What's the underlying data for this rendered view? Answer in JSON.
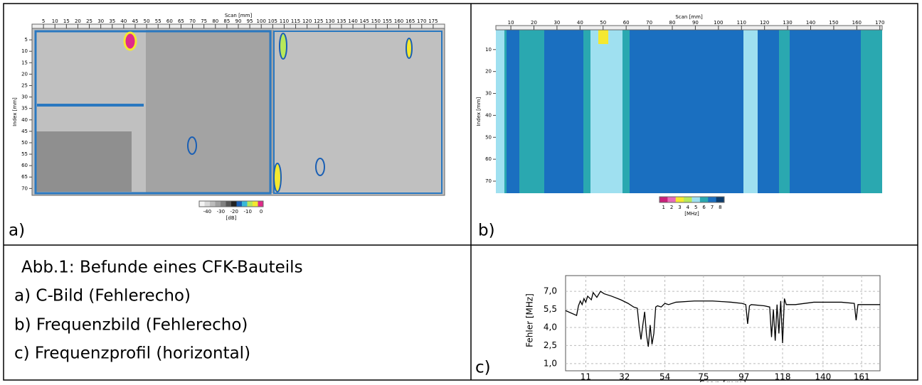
{
  "caption": [
    "Abb.1: Befunde eines CFK-Bauteils",
    "a) C-Bild (Fehlerecho)",
    "b) Frequenzbild (Fehlerecho)",
    "c) Frequenzprofil (horizontal)"
  ],
  "panel_a": {
    "label": "a)",
    "x_title": "Scan [mm]",
    "y_title": "Index [mm]",
    "xlim": [
      0,
      180
    ],
    "ylim": [
      0,
      73
    ],
    "xticks": [
      5,
      10,
      15,
      20,
      25,
      30,
      35,
      40,
      45,
      50,
      55,
      60,
      65,
      70,
      75,
      80,
      85,
      90,
      95,
      100,
      105,
      110,
      115,
      120,
      125,
      130,
      135,
      140,
      145,
      150,
      155,
      160,
      165,
      170,
      175
    ],
    "yticks": [
      5,
      10,
      15,
      20,
      25,
      30,
      35,
      40,
      45,
      50,
      55,
      60,
      65,
      70
    ],
    "colorbar": {
      "title": "[dB]",
      "clim": [
        -46,
        1.5
      ],
      "ticks": [
        -40,
        -30,
        -20,
        -10,
        0
      ],
      "colors": [
        "#f4f4f4",
        "#d8d8d8",
        "#bcbcbc",
        "#a0a0a0",
        "#808080",
        "#555",
        "#222",
        "#1a5fb4",
        "#39b8d8",
        "#b8e85a",
        "#f4e830",
        "#e02a8a"
      ]
    }
  },
  "panel_b": {
    "label": "b)",
    "x_title": "Scan [mm]",
    "y_title": "Index [mm]",
    "xlim": [
      3.5,
      171
    ],
    "ylim": [
      1,
      75.5
    ],
    "xticks": [
      10,
      20,
      30,
      40,
      50,
      60,
      70,
      80,
      90,
      100,
      110,
      120,
      130,
      140,
      150,
      160,
      170
    ],
    "yticks": [
      10,
      20,
      30,
      40,
      50,
      60,
      70
    ],
    "colorbar": {
      "title": "[MHz]",
      "clim": [
        0.5,
        8.5
      ],
      "ticks": [
        1,
        2,
        3,
        4,
        5,
        6,
        7,
        8
      ],
      "colors": [
        "#c8207a",
        "#e86ab8",
        "#f4e830",
        "#b8e85a",
        "#9fe0f0",
        "#2aa8b0",
        "#1a6fc0",
        "#0c3c6c"
      ]
    }
  },
  "chart_data": {
    "type": "line",
    "label": "c)",
    "x_title": "Scan [mm]",
    "y_title": "Fehler [MHz]",
    "xlim": [
      0,
      171
    ],
    "ylim": [
      0.4,
      7.6
    ],
    "xticks": [
      11,
      32,
      54,
      75,
      97,
      118,
      140,
      161
    ],
    "yticks": [
      {
        "value": 7,
        "label": "7,0"
      },
      {
        "value": 5.5,
        "label": "5,5"
      },
      {
        "value": 4,
        "label": "4,0"
      },
      {
        "value": 2.5,
        "label": "2,5"
      },
      {
        "value": 1,
        "label": "1,0"
      }
    ],
    "grid": true,
    "color": "#000000",
    "x": [
      0,
      6,
      7,
      8,
      9,
      10,
      11,
      12,
      14,
      15,
      17,
      19,
      21,
      25,
      30,
      34,
      37,
      39,
      40,
      41,
      42,
      43,
      44,
      45,
      46,
      47,
      48,
      49,
      50,
      52,
      54,
      56,
      60,
      70,
      80,
      90,
      96,
      98,
      99,
      100,
      101,
      108,
      111,
      112,
      113,
      114,
      115,
      116,
      117,
      118,
      119,
      120,
      125,
      135,
      150,
      157,
      158,
      159,
      165,
      171
    ],
    "values": [
      5.4,
      5.0,
      5.8,
      6.2,
      5.9,
      6.4,
      6.1,
      6.6,
      6.3,
      6.9,
      6.5,
      7.0,
      6.8,
      6.6,
      6.3,
      6.0,
      5.7,
      5.6,
      4.1,
      3.0,
      4.2,
      5.3,
      3.4,
      2.4,
      4.2,
      2.6,
      3.5,
      5.7,
      5.8,
      5.7,
      6.0,
      5.9,
      6.1,
      6.2,
      6.2,
      6.1,
      6.0,
      5.9,
      4.3,
      5.8,
      5.9,
      5.8,
      5.7,
      3.2,
      5.5,
      2.9,
      5.9,
      3.5,
      6.2,
      2.7,
      6.4,
      5.9,
      5.9,
      6.1,
      6.1,
      6.0,
      4.6,
      5.9,
      5.9,
      5.9
    ]
  }
}
